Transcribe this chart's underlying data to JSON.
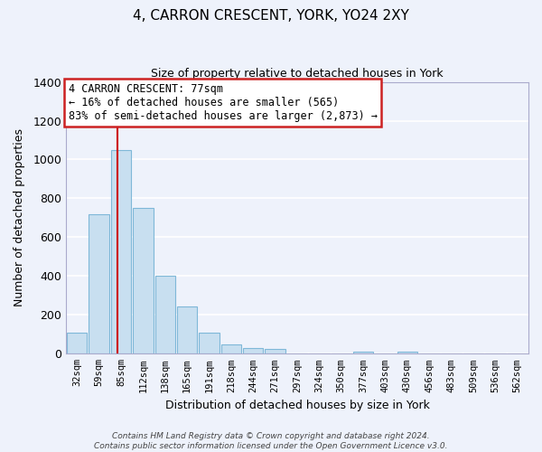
{
  "title": "4, CARRON CRESCENT, YORK, YO24 2XY",
  "subtitle": "Size of property relative to detached houses in York",
  "xlabel": "Distribution of detached houses by size in York",
  "ylabel": "Number of detached properties",
  "bar_color": "#c8dff0",
  "bar_edge_color": "#7fb8d8",
  "background_color": "#eef2fb",
  "grid_color": "#ffffff",
  "bin_labels": [
    "32sqm",
    "59sqm",
    "85sqm",
    "112sqm",
    "138sqm",
    "165sqm",
    "191sqm",
    "218sqm",
    "244sqm",
    "271sqm",
    "297sqm",
    "324sqm",
    "350sqm",
    "377sqm",
    "403sqm",
    "430sqm",
    "456sqm",
    "483sqm",
    "509sqm",
    "536sqm",
    "562sqm"
  ],
  "bar_heights": [
    110,
    720,
    1050,
    750,
    400,
    245,
    110,
    48,
    28,
    25,
    0,
    0,
    0,
    10,
    0,
    13,
    0,
    0,
    0,
    0,
    0
  ],
  "ylim": [
    0,
    1400
  ],
  "yticks": [
    0,
    200,
    400,
    600,
    800,
    1000,
    1200,
    1400
  ],
  "red_line_x": 1.85,
  "annotation_line0": "4 CARRON CRESCENT: 77sqm",
  "annotation_line1": "← 16% of detached houses are smaller (565)",
  "annotation_line2": "83% of semi-detached houses are larger (2,873) →",
  "footer_line1": "Contains HM Land Registry data © Crown copyright and database right 2024.",
  "footer_line2": "Contains public sector information licensed under the Open Government Licence v3.0."
}
